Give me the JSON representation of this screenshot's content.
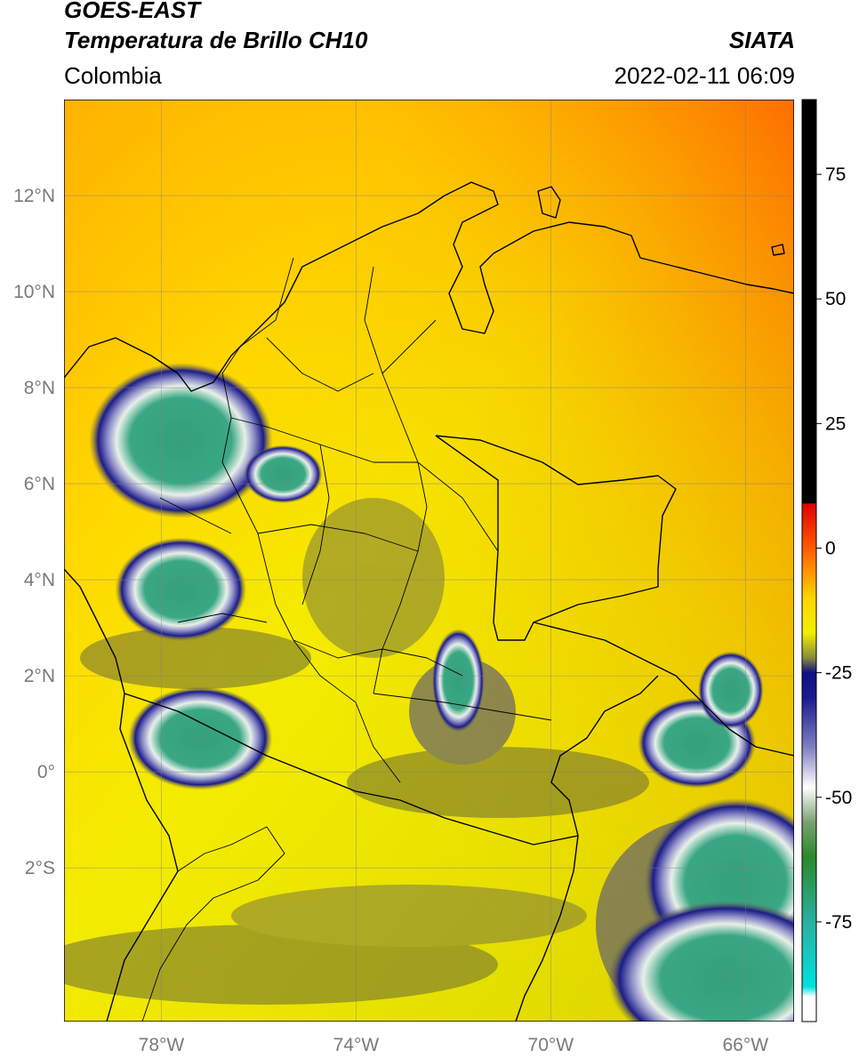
{
  "header": {
    "satellite": "GOES-EAST",
    "product": "Temperatura de Brillo CH10",
    "region": "Colombia",
    "agency": "SIATA",
    "datetime": "2022-02-11 06:09"
  },
  "map": {
    "lon_range": [
      -80,
      -65
    ],
    "lat_range": [
      -5.2,
      14
    ],
    "lon_ticks": [
      {
        "value": -78,
        "label": "78°W"
      },
      {
        "value": -74,
        "label": "74°W"
      },
      {
        "value": -70,
        "label": "70°W"
      },
      {
        "value": -66,
        "label": "66°W"
      }
    ],
    "lat_ticks": [
      {
        "value": 12,
        "label": "12°N"
      },
      {
        "value": 10,
        "label": "10°N"
      },
      {
        "value": 8,
        "label": "8°N"
      },
      {
        "value": 6,
        "label": "6°N"
      },
      {
        "value": 4,
        "label": "4°N"
      },
      {
        "value": 2,
        "label": "2°N"
      },
      {
        "value": 0,
        "label": "0°"
      },
      {
        "value": -2,
        "label": "2°S"
      }
    ],
    "grid": true,
    "background_color": "#f2e800",
    "cloud_cells": [
      {
        "lon": -77.6,
        "lat": 6.9,
        "rx_deg": 1.4,
        "ry_deg": 1.2
      },
      {
        "lon": -77.6,
        "lat": 3.8,
        "rx_deg": 1.0,
        "ry_deg": 0.8
      },
      {
        "lon": -75.5,
        "lat": 6.2,
        "rx_deg": 0.6,
        "ry_deg": 0.45
      },
      {
        "lon": -77.2,
        "lat": 0.7,
        "rx_deg": 1.1,
        "ry_deg": 0.8
      },
      {
        "lon": -71.9,
        "lat": 1.9,
        "rx_deg": 0.4,
        "ry_deg": 0.8
      },
      {
        "lon": -67.0,
        "lat": 0.6,
        "rx_deg": 0.9,
        "ry_deg": 0.7
      },
      {
        "lon": -66.3,
        "lat": 1.7,
        "rx_deg": 0.5,
        "ry_deg": 0.6
      },
      {
        "lon": -66.2,
        "lat": -2.3,
        "rx_deg": 1.4,
        "ry_deg": 1.3
      },
      {
        "lon": -66.4,
        "lat": -4.3,
        "rx_deg": 1.8,
        "ry_deg": 1.2
      }
    ]
  },
  "colorbar": {
    "range": [
      -95,
      90
    ],
    "ticks": [
      {
        "value": 75,
        "label": "75"
      },
      {
        "value": 50,
        "label": "50"
      },
      {
        "value": 25,
        "label": "25"
      },
      {
        "value": 0,
        "label": "0"
      },
      {
        "value": -25,
        "label": "-25"
      },
      {
        "value": -50,
        "label": "-50"
      },
      {
        "value": -75,
        "label": "-75"
      }
    ],
    "stops": [
      {
        "value": 90,
        "color": "#000000"
      },
      {
        "value": 9,
        "color": "#000000"
      },
      {
        "value": 8.9,
        "color": "#e00000"
      },
      {
        "value": 0,
        "color": "#ff5a00"
      },
      {
        "value": -10,
        "color": "#ffd500"
      },
      {
        "value": -17,
        "color": "#f0f000"
      },
      {
        "value": -22,
        "color": "#8a8a3c"
      },
      {
        "value": -25,
        "color": "#101080"
      },
      {
        "value": -30,
        "color": "#1a1a90"
      },
      {
        "value": -40,
        "color": "#8080c0"
      },
      {
        "value": -48,
        "color": "#ffffff"
      },
      {
        "value": -55,
        "color": "#7aa070"
      },
      {
        "value": -62,
        "color": "#2a8a2a"
      },
      {
        "value": -75,
        "color": "#2ab0a0"
      },
      {
        "value": -88,
        "color": "#00e0e0"
      },
      {
        "value": -90,
        "color": "#ffffff"
      },
      {
        "value": -95,
        "color": "#ffffff"
      }
    ]
  }
}
